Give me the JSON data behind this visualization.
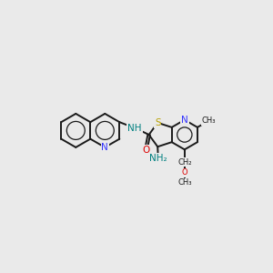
{
  "bg": "#eaeaea",
  "bond_color": "#1a1a1a",
  "N_color": "#3333ff",
  "S_color": "#b8a000",
  "O_color": "#dd0000",
  "NH_color": "#008080",
  "figsize": [
    3.0,
    3.0
  ],
  "dpi": 100,
  "xlim": [
    0,
    10
  ],
  "ylim": [
    0,
    10
  ]
}
